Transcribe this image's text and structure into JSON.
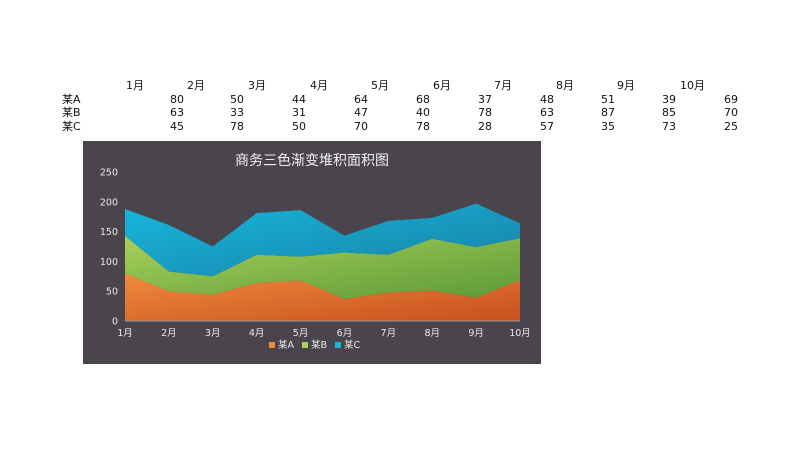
{
  "table": {
    "months": [
      "1月",
      "2月",
      "3月",
      "4月",
      "5月",
      "6月",
      "7月",
      "8月",
      "9月",
      "10月"
    ],
    "rows": [
      {
        "label": "某A",
        "values": [
          "80",
          "50",
          "44",
          "64",
          "68",
          "37",
          "48",
          "51",
          "39",
          "69"
        ]
      },
      {
        "label": "某B",
        "values": [
          "63",
          "33",
          "31",
          "47",
          "40",
          "78",
          "63",
          "87",
          "85",
          "70"
        ]
      },
      {
        "label": "某C",
        "values": [
          "45",
          "78",
          "50",
          "70",
          "78",
          "28",
          "57",
          "35",
          "73",
          "25"
        ]
      }
    ]
  },
  "chart_data": {
    "type": "area",
    "stacked": true,
    "title": "商务三色渐变堆积面积图",
    "categories": [
      "1月",
      "2月",
      "3月",
      "4月",
      "5月",
      "6月",
      "7月",
      "8月",
      "9月",
      "10月"
    ],
    "series": [
      {
        "name": "某A",
        "values": [
          80,
          50,
          44,
          64,
          68,
          37,
          48,
          51,
          39,
          69
        ]
      },
      {
        "name": "某B",
        "values": [
          63,
          33,
          31,
          47,
          40,
          78,
          63,
          87,
          85,
          70
        ]
      },
      {
        "name": "某C",
        "values": [
          45,
          78,
          50,
          70,
          78,
          28,
          57,
          35,
          73,
          25
        ]
      }
    ],
    "ylim": [
      0,
      250
    ],
    "yticks": [
      0,
      50,
      100,
      150,
      200,
      250
    ],
    "grid": false,
    "legend": "bottom",
    "colors": {
      "某A": {
        "light": "#f08a3c",
        "dark": "#c8501e"
      },
      "某B": {
        "light": "#a6d15a",
        "dark": "#5e9a38"
      },
      "某C": {
        "light": "#16b8dc",
        "dark": "#1a7fa6"
      },
      "background": "#4a454c",
      "text": "#e8e8e8"
    }
  }
}
